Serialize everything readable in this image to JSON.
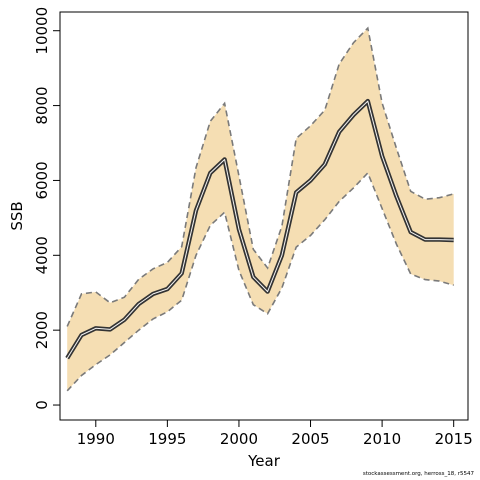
{
  "chart_data": {
    "type": "line",
    "title": "",
    "xlabel": "Year",
    "ylabel": "SSB",
    "xlim": [
      1987.5,
      2016
    ],
    "ylim": [
      -400,
      10500
    ],
    "x_ticks": [
      1990,
      1995,
      2000,
      2005,
      2010,
      2015
    ],
    "y_ticks": [
      0,
      2000,
      4000,
      6000,
      8000,
      10000
    ],
    "grid": false,
    "legend": "none",
    "x": [
      1988,
      1989,
      1990,
      1991,
      1992,
      1993,
      1994,
      1995,
      1996,
      1997,
      1998,
      1999,
      2000,
      2001,
      2002,
      2003,
      2004,
      2005,
      2006,
      2007,
      2008,
      2009,
      2010,
      2011,
      2012,
      2013,
      2014,
      2015
    ],
    "series": [
      {
        "role": "estimate",
        "values": [
          1250,
          1870,
          2050,
          2020,
          2280,
          2700,
          2970,
          3100,
          3520,
          5200,
          6200,
          6560,
          4700,
          3420,
          3030,
          4000,
          5680,
          6000,
          6430,
          7300,
          7750,
          8120,
          6650,
          5580,
          4620,
          4420,
          4420,
          4410
        ]
      },
      {
        "role": "lower",
        "values": [
          380,
          790,
          1080,
          1340,
          1670,
          2000,
          2300,
          2490,
          2800,
          4000,
          4800,
          5150,
          3600,
          2680,
          2440,
          3130,
          4220,
          4530,
          4950,
          5440,
          5800,
          6200,
          5250,
          4300,
          3500,
          3350,
          3310,
          3200
        ]
      },
      {
        "role": "upper",
        "values": [
          2100,
          2970,
          3020,
          2730,
          2880,
          3360,
          3640,
          3810,
          4230,
          6340,
          7580,
          8060,
          6130,
          4160,
          3660,
          4780,
          7120,
          7460,
          7880,
          9110,
          9680,
          10070,
          8070,
          6860,
          5710,
          5500,
          5540,
          5640
        ]
      }
    ],
    "colors": {
      "band": "#f5deb3",
      "bound_line": "#7a7a7a",
      "estimate_line": "#333333",
      "axis": "#000000"
    }
  },
  "caption": "stockassessment.org, herross_18, r5547"
}
